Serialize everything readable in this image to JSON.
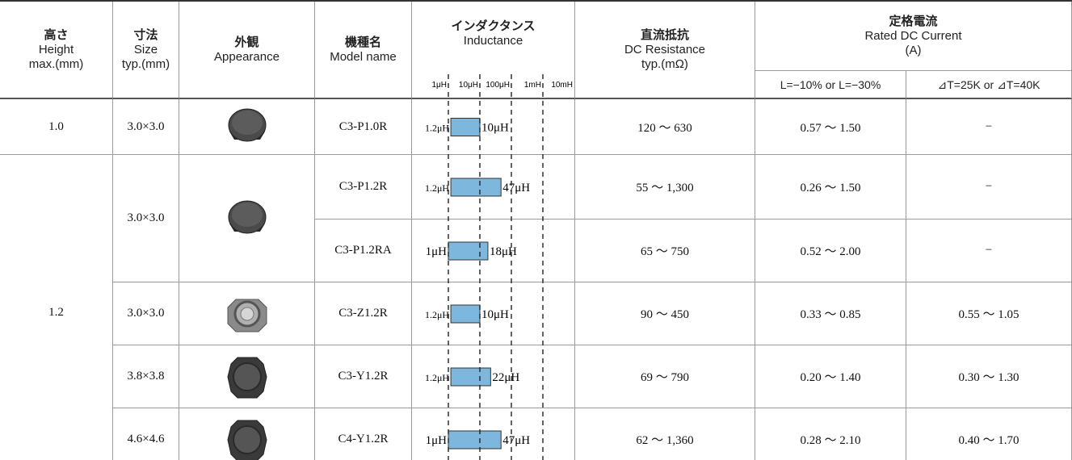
{
  "header": {
    "height": {
      "ja": "高さ",
      "en": "Height",
      "unit": "max.(mm)"
    },
    "size": {
      "ja": "寸法",
      "en": "Size",
      "unit": "typ.(mm)"
    },
    "appearance": {
      "ja": "外観",
      "en": "Appearance"
    },
    "model": {
      "ja": "機種名",
      "en": "Model name"
    },
    "inductance": {
      "ja": "インダクタンス",
      "en": "Inductance"
    },
    "resistance": {
      "ja": "直流抵抗",
      "en": "DC Resistance",
      "unit": "typ.(mΩ)"
    },
    "current": {
      "ja": "定格電流",
      "en": "Rated DC Current",
      "unit": "(A)",
      "sub": [
        "L=−10% or L=−30%",
        "⊿T=25K or ⊿T=40K"
      ]
    }
  },
  "inductance_scale": {
    "ticks": [
      {
        "value": 1,
        "label": "1μH"
      },
      {
        "value": 10,
        "label": "10μH"
      },
      {
        "value": 100,
        "label": "100μH"
      },
      {
        "value": 1000,
        "label": "1mH"
      },
      {
        "value": 10000,
        "label": "10mH"
      }
    ]
  },
  "table": {
    "rows": [
      {
        "height": "1.0",
        "size": "3.0×3.0",
        "model": "C3-P1.0R",
        "inductance": {
          "min": 1.2,
          "max": 10,
          "min_label": "1.2μH",
          "max_label": "10μH"
        },
        "resistance": "120 〜 630",
        "current_l": "0.57 〜 1.50",
        "current_t": "−"
      },
      {
        "height": "1.2",
        "size": "3.0×3.0",
        "model": "C3-P1.2R",
        "inductance": {
          "min": 1.2,
          "max": 47,
          "min_label": "1.2μH",
          "max_label": "47μH"
        },
        "resistance": "55 〜 1,300",
        "current_l": "0.26 〜 1.50",
        "current_t": "−"
      },
      {
        "model": "C3-P1.2RA",
        "inductance": {
          "min": 1,
          "max": 18,
          "min_label": "1μH",
          "max_label": "18μH"
        },
        "resistance": "65 〜 750",
        "current_l": "0.52 〜 2.00",
        "current_t": "−"
      },
      {
        "size": "3.0×3.0",
        "model": "C3-Z1.2R",
        "inductance": {
          "min": 1.2,
          "max": 10,
          "min_label": "1.2μH",
          "max_label": "10μH"
        },
        "resistance": "90 〜 450",
        "current_l": "0.33 〜 0.85",
        "current_t": "0.55 〜 1.05"
      },
      {
        "size": "3.8×3.8",
        "model": "C3-Y1.2R",
        "inductance": {
          "min": 1.2,
          "max": 22,
          "min_label": "1.2μH",
          "max_label": "22μH"
        },
        "resistance": "69 〜 790",
        "current_l": "0.20 〜 1.40",
        "current_t": "0.30 〜 1.30"
      },
      {
        "size": "4.6×4.6",
        "model": "C4-Y1.2R",
        "inductance": {
          "min": 1,
          "max": 47,
          "min_label": "1μH",
          "max_label": "47μH"
        },
        "resistance": "62 〜 1,360",
        "current_l": "0.28 〜 2.10",
        "current_t": "0.40 〜 1.70"
      }
    ]
  }
}
